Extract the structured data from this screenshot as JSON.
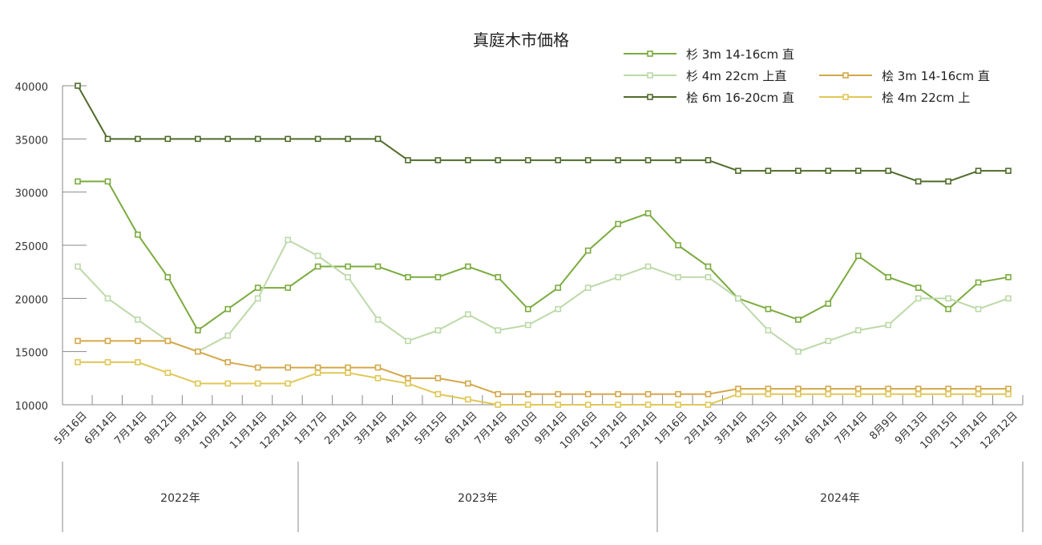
{
  "chart_data": {
    "type": "line",
    "title": "真庭木市価格",
    "xlabel": "",
    "ylabel": "",
    "ylim": [
      10000,
      40000
    ],
    "yticks": [
      10000,
      15000,
      20000,
      25000,
      30000,
      35000,
      40000
    ],
    "grid": false,
    "legend_position": "top-right",
    "categories": [
      "5月16日",
      "6月14日",
      "7月14日",
      "8月12日",
      "9月14日",
      "10月14日",
      "11月14日",
      "12月14日",
      "1月17日",
      "2月14日",
      "3月14日",
      "4月14日",
      "5月15日",
      "6月14日",
      "7月14日",
      "8月10日",
      "9月14日",
      "10月16日",
      "11月14日",
      "12月14日",
      "1月16日",
      "2月14日",
      "3月14日",
      "4月15日",
      "5月14日",
      "6月14日",
      "7月14日",
      "8月9日",
      "9月13日",
      "10月15日",
      "11月14日",
      "12月12日"
    ],
    "year_groups": [
      {
        "label": "2022年",
        "start": 0,
        "end": 7
      },
      {
        "label": "2023年",
        "start": 8,
        "end": 19
      },
      {
        "label": "2024年",
        "start": 20,
        "end": 31
      }
    ],
    "series": [
      {
        "name": "杉 3m 14-16cm 直",
        "color": "#7aab3e",
        "values": [
          31000,
          31000,
          26000,
          22000,
          17000,
          19000,
          21000,
          21000,
          23000,
          23000,
          23000,
          22000,
          22000,
          23000,
          22000,
          19000,
          21000,
          24500,
          27000,
          28000,
          25000,
          23000,
          20000,
          19000,
          18000,
          19500,
          24000,
          22000,
          21000,
          19000,
          21500,
          22000
        ]
      },
      {
        "name": "杉 4m 22cm 上直",
        "color": "#bcd9a8",
        "values": [
          23000,
          20000,
          18000,
          16000,
          15000,
          16500,
          20000,
          25500,
          24000,
          22000,
          18000,
          16000,
          17000,
          18500,
          17000,
          17500,
          19000,
          21000,
          22000,
          23000,
          22000,
          22000,
          20000,
          17000,
          15000,
          16000,
          17000,
          17500,
          20000,
          20000,
          19000,
          20000
        ]
      },
      {
        "name": "桧 6m 16-20cm 直",
        "color": "#4f6b2a",
        "values": [
          40000,
          35000,
          35000,
          35000,
          35000,
          35000,
          35000,
          35000,
          35000,
          35000,
          35000,
          33000,
          33000,
          33000,
          33000,
          33000,
          33000,
          33000,
          33000,
          33000,
          33000,
          33000,
          32000,
          32000,
          32000,
          32000,
          32000,
          32000,
          31000,
          31000,
          32000,
          32000
        ]
      },
      {
        "name": "桧 3m 14-16cm 直",
        "color": "#d4a84a",
        "values": [
          16000,
          16000,
          16000,
          16000,
          15000,
          14000,
          13500,
          13500,
          13500,
          13500,
          13500,
          12500,
          12500,
          12000,
          11000,
          11000,
          11000,
          11000,
          11000,
          11000,
          11000,
          11000,
          11500,
          11500,
          11500,
          11500,
          11500,
          11500,
          11500,
          11500,
          11500,
          11500
        ]
      },
      {
        "name": "桧 4m 22cm 上",
        "color": "#e0c757",
        "values": [
          14000,
          14000,
          14000,
          13000,
          12000,
          12000,
          12000,
          12000,
          13000,
          13000,
          12500,
          12000,
          11000,
          10500,
          10000,
          10000,
          10000,
          10000,
          10000,
          10000,
          10000,
          10000,
          11000,
          11000,
          11000,
          11000,
          11000,
          11000,
          11000,
          11000,
          11000,
          11000
        ]
      }
    ]
  }
}
